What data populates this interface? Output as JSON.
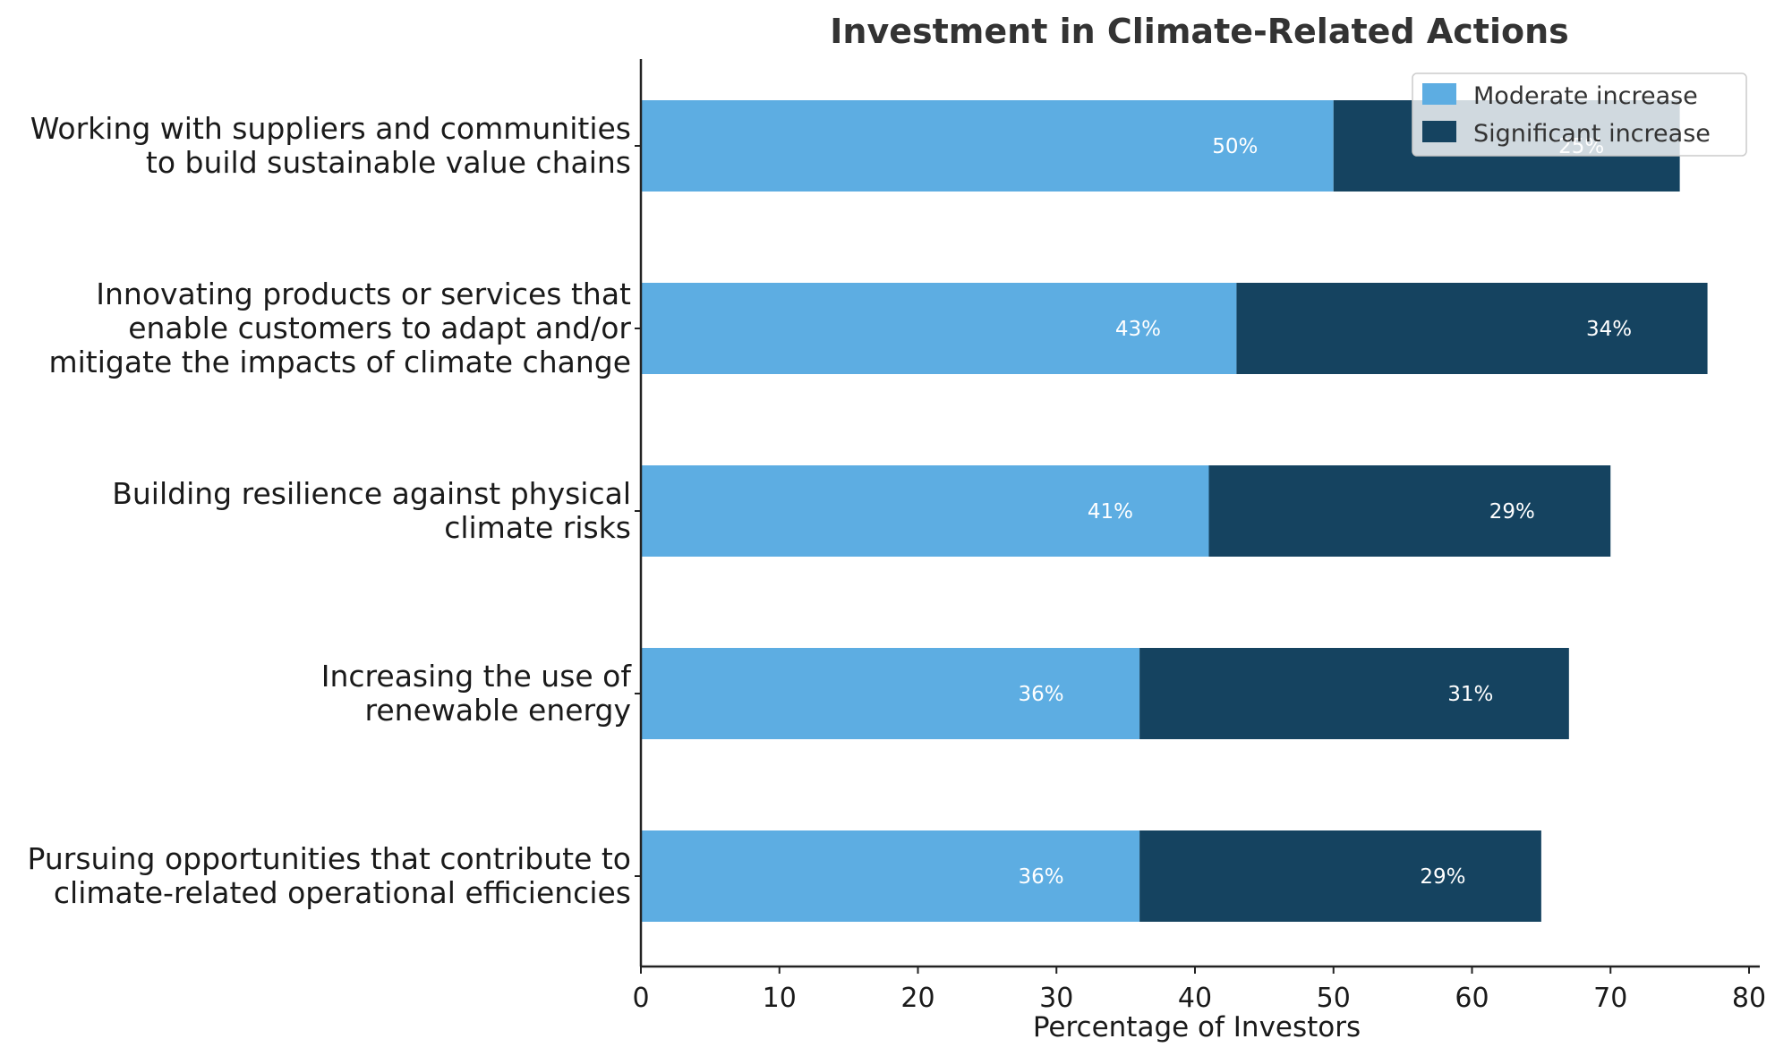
{
  "chart_data": {
    "type": "bar",
    "orientation": "horizontal",
    "stacked": true,
    "title": "Investment in Climate-Related Actions",
    "xlabel": "Percentage of Investors",
    "ylabel": "",
    "xlim": [
      0,
      80
    ],
    "xticks": [
      "0",
      "10",
      "20",
      "30",
      "40",
      "50",
      "60",
      "70",
      "80"
    ],
    "categories": [
      [
        "Working with suppliers and communities",
        "to build sustainable value chains"
      ],
      [
        "Innovating products or services that",
        "enable customers to adapt and/or",
        "mitigate the impacts of climate change"
      ],
      [
        "Building resilience against physical",
        "climate risks"
      ],
      [
        "Increasing the use of",
        "renewable energy"
      ],
      [
        "Pursuing opportunities that contribute to",
        "climate-related operational efficiencies"
      ]
    ],
    "series": [
      {
        "name": "Moderate increase",
        "color": "#5DADE2",
        "values": [
          50,
          43,
          41,
          36,
          36
        ],
        "labels": [
          "50%",
          "43%",
          "41%",
          "36%",
          "36%"
        ]
      },
      {
        "name": "Significant increase",
        "color": "#154360",
        "values": [
          25,
          34,
          29,
          31,
          29
        ],
        "labels": [
          "25%",
          "34%",
          "29%",
          "31%",
          "29%"
        ]
      }
    ],
    "grid": false,
    "legend_position": "top-right"
  }
}
